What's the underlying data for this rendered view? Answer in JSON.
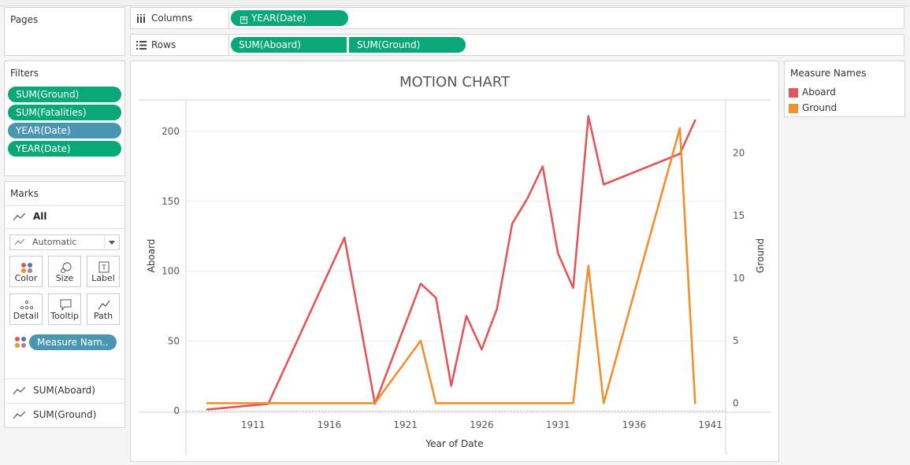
{
  "pages": {
    "title": "Pages"
  },
  "columns": {
    "label": "Columns",
    "pill": "YEAR(Date)"
  },
  "rows": {
    "label": "Rows",
    "pills": [
      "SUM(Aboard)",
      "SUM(Ground)"
    ]
  },
  "filters": {
    "title": "Filters",
    "items": [
      {
        "label": "SUM(Ground)",
        "color": "#0aa876"
      },
      {
        "label": "SUM(Fatalities)",
        "color": "#0aa876"
      },
      {
        "label": "YEAR(Date)",
        "color": "#4a96b0"
      },
      {
        "label": "YEAR(Date)",
        "color": "#0aa876"
      }
    ]
  },
  "marks": {
    "title": "Marks",
    "all_label": "All",
    "type_select": "Automatic",
    "buttons": [
      "Color",
      "Size",
      "Label",
      "Detail",
      "Tooltip",
      "Path"
    ],
    "color_pill": "Measure Nam..",
    "measures": [
      "SUM(Aboard)",
      "SUM(Ground)"
    ]
  },
  "legend": {
    "title": "Measure Names",
    "items": [
      {
        "label": "Aboard",
        "color": "#e05759"
      },
      {
        "label": "Ground",
        "color": "#f28e2b"
      }
    ]
  },
  "chart_data": {
    "type": "line",
    "title": "MOTION CHART",
    "xlabel": "Year of Date",
    "ylabel_left": "Aboard",
    "ylabel_right": "Ground",
    "x_ticks": [
      1911,
      1916,
      1921,
      1926,
      1931,
      1936,
      1941
    ],
    "y_left_ticks": [
      0,
      50,
      100,
      150,
      200
    ],
    "y_right_ticks": [
      0,
      5,
      10,
      15,
      20
    ],
    "xlim": [
      1906.6,
      1942
    ],
    "ylim_left": [
      -1,
      222
    ],
    "ylim_right": [
      -0.73,
      24.2
    ],
    "series": [
      {
        "name": "Aboard",
        "axis": "left",
        "color": "#e05759",
        "points": [
          [
            1908,
            1
          ],
          [
            1912,
            5
          ],
          [
            1917,
            124
          ],
          [
            1919,
            5
          ],
          [
            1922,
            91
          ],
          [
            1923,
            81
          ],
          [
            1924,
            18
          ],
          [
            1925,
            68
          ],
          [
            1926,
            44
          ],
          [
            1927,
            73
          ],
          [
            1928,
            134
          ],
          [
            1929,
            152
          ],
          [
            1930,
            175
          ],
          [
            1931,
            113
          ],
          [
            1932,
            88
          ],
          [
            1933,
            211
          ],
          [
            1934,
            162
          ],
          [
            1939,
            184
          ],
          [
            1940,
            208
          ]
        ]
      },
      {
        "name": "Ground",
        "axis": "right",
        "color": "#f28e2b",
        "points": [
          [
            1908,
            0
          ],
          [
            1919,
            0
          ],
          [
            1922,
            5
          ],
          [
            1923,
            0
          ],
          [
            1932,
            0
          ],
          [
            1933,
            11
          ],
          [
            1934,
            0
          ],
          [
            1939,
            22
          ],
          [
            1940,
            0
          ]
        ]
      }
    ]
  }
}
